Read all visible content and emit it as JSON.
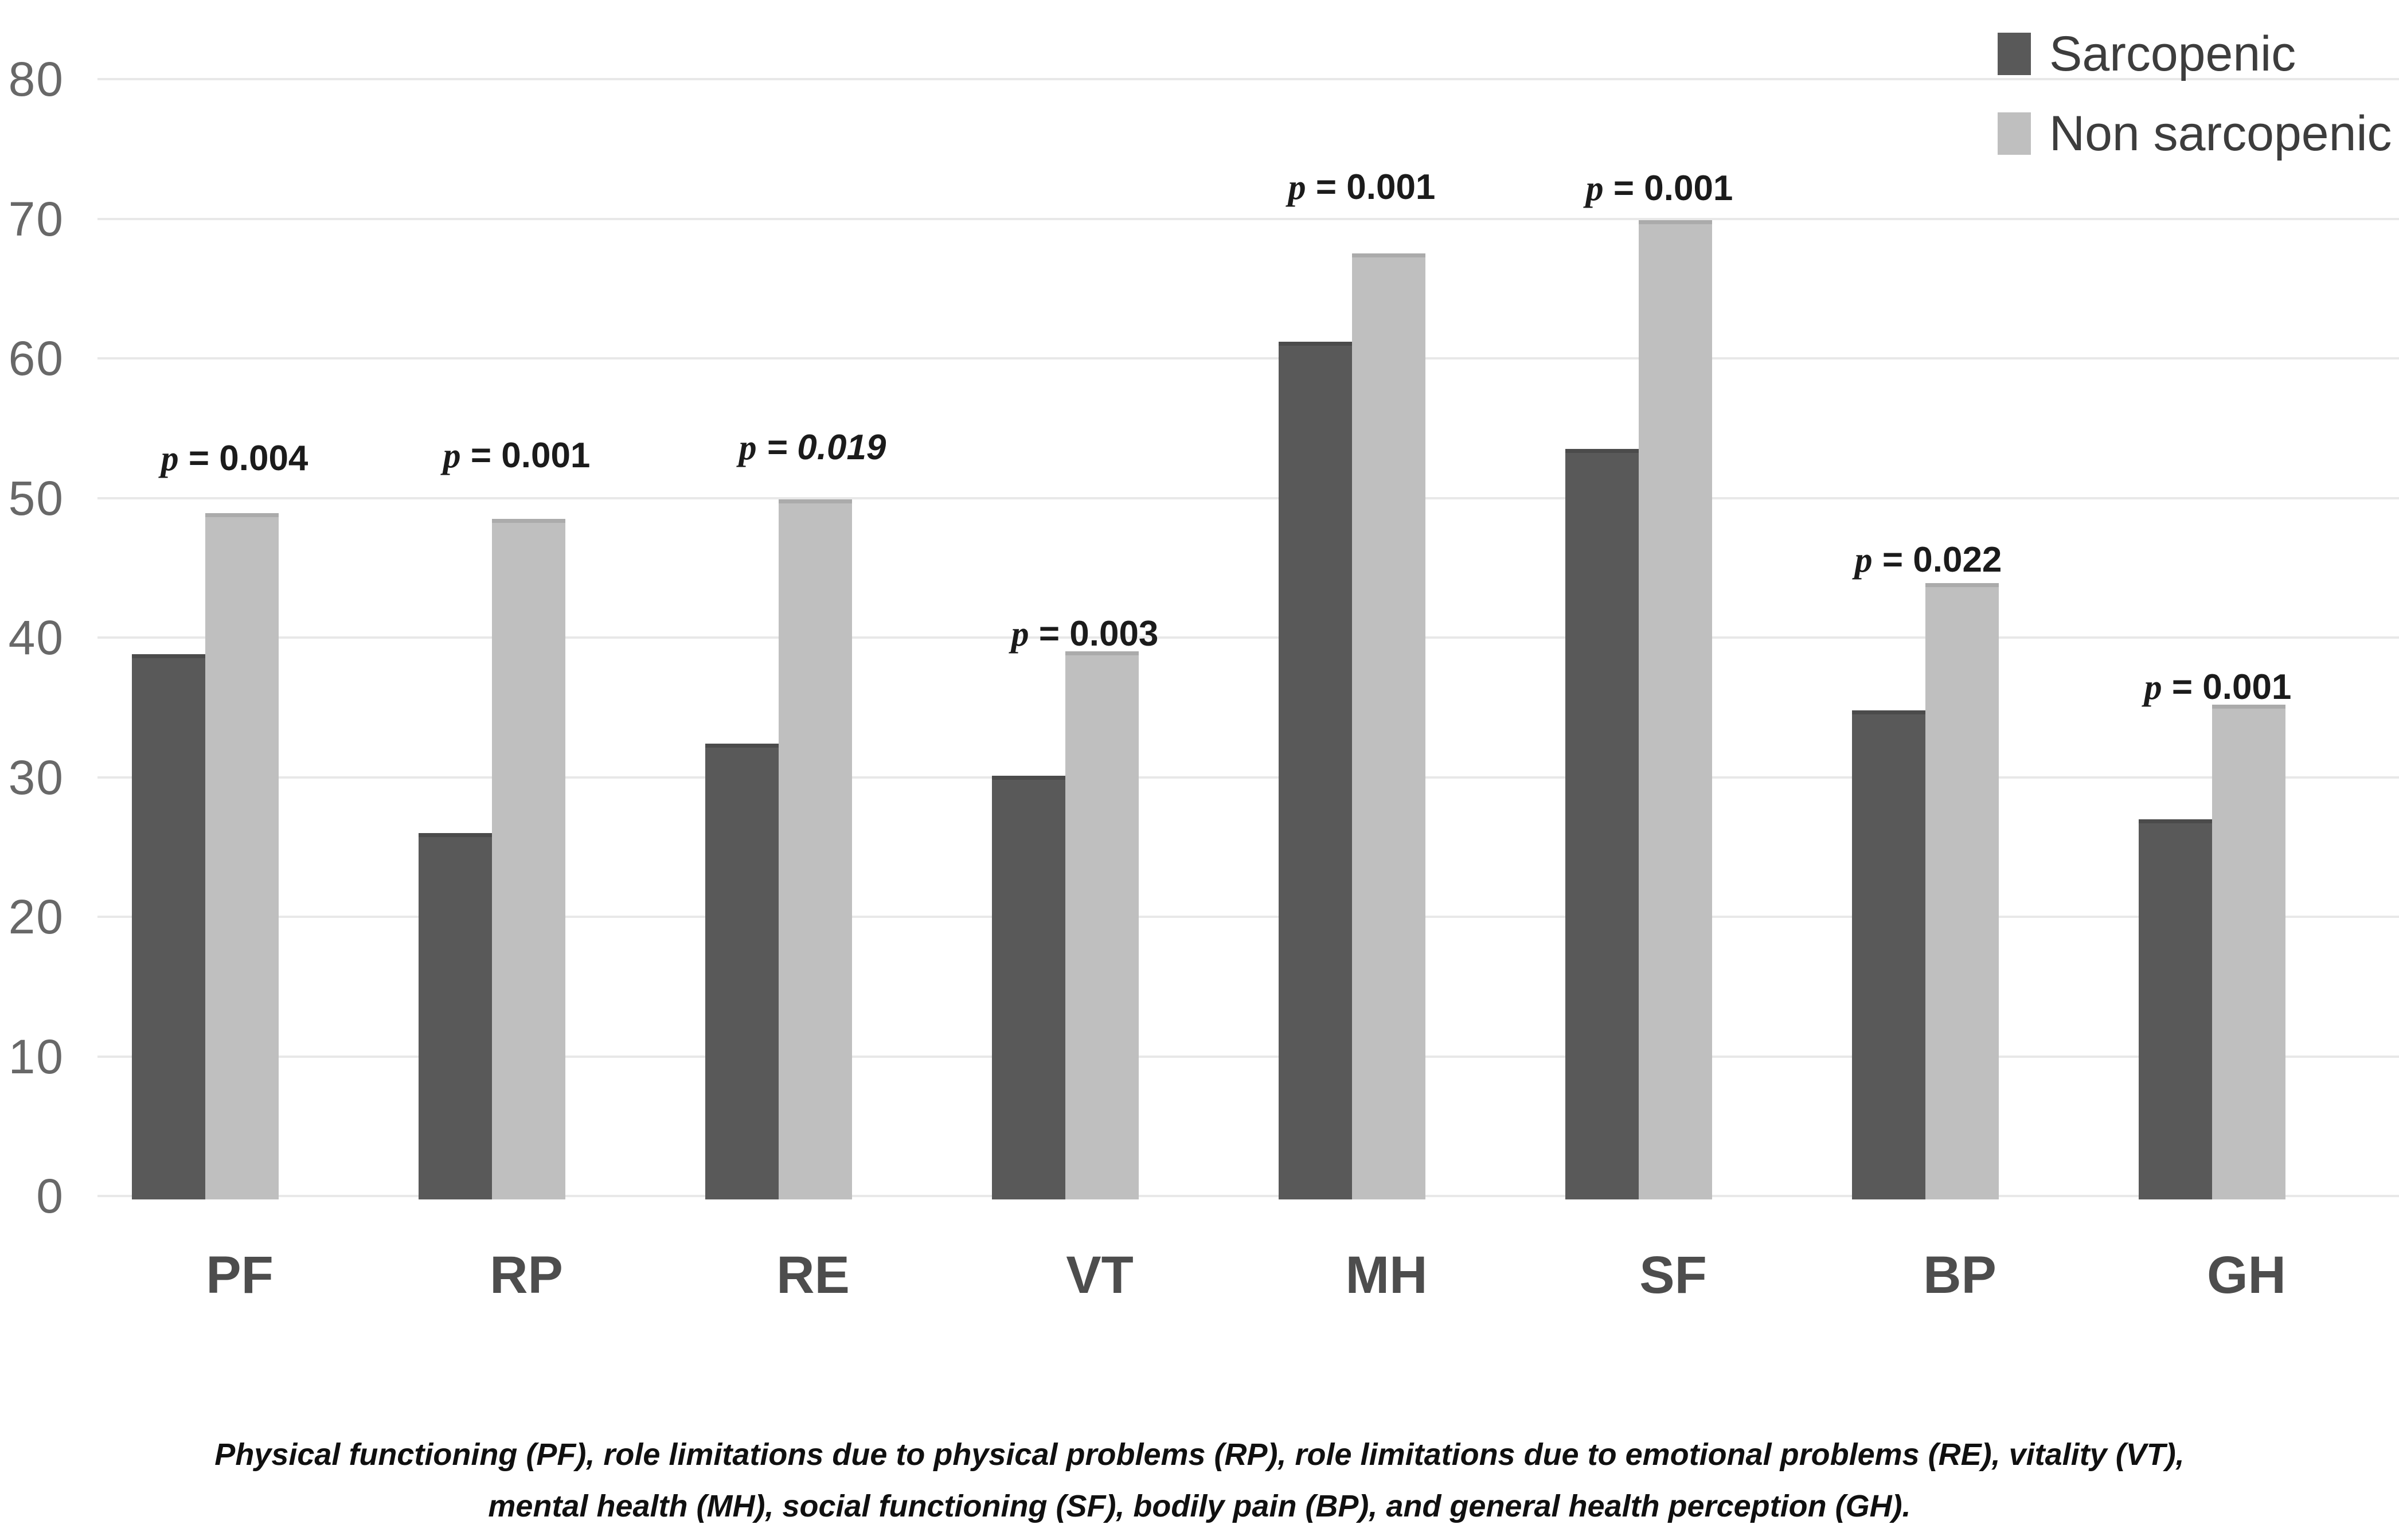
{
  "legend": {
    "items": [
      {
        "label": "Sarcopenic",
        "color": "#595959"
      },
      {
        "label": "Non sarcopenic",
        "color": "#bfbfbf"
      }
    ]
  },
  "caption": {
    "line1": "Physical functioning (PF), role limitations due to physical problems (RP), role limitations due to emotional problems (RE), vitality (VT),",
    "line2": "mental health (MH), social functioning (SF), bodily pain (BP),  and general health perception (GH)."
  },
  "chart_data": {
    "type": "bar",
    "title": "",
    "xlabel": "",
    "ylabel": "",
    "categories": [
      "PF",
      "RP",
      "RE",
      "VT",
      "MH",
      "SF",
      "BP",
      "GH"
    ],
    "series": [
      {
        "name": "Sarcopenic",
        "color": "#595959",
        "values": [
          38.8,
          26.0,
          32.4,
          30.1,
          61.2,
          53.5,
          34.8,
          27.0
        ]
      },
      {
        "name": "Non sarcopenic",
        "color": "#bfbfbf",
        "values": [
          48.9,
          48.5,
          49.9,
          39.0,
          67.5,
          69.9,
          43.9,
          35.2
        ]
      }
    ],
    "p_values": [
      "p = 0.004",
      "p = 0.001",
      "p = 0.019",
      "p = 0.003",
      "p = 0.001",
      "p = 0.001",
      "p = 0.022",
      "p = 0.001"
    ],
    "ylim": [
      0,
      80
    ],
    "yticks": [
      0,
      10,
      20,
      30,
      40,
      50,
      60,
      70,
      80
    ],
    "grid": true,
    "legend_position": "top-right"
  }
}
